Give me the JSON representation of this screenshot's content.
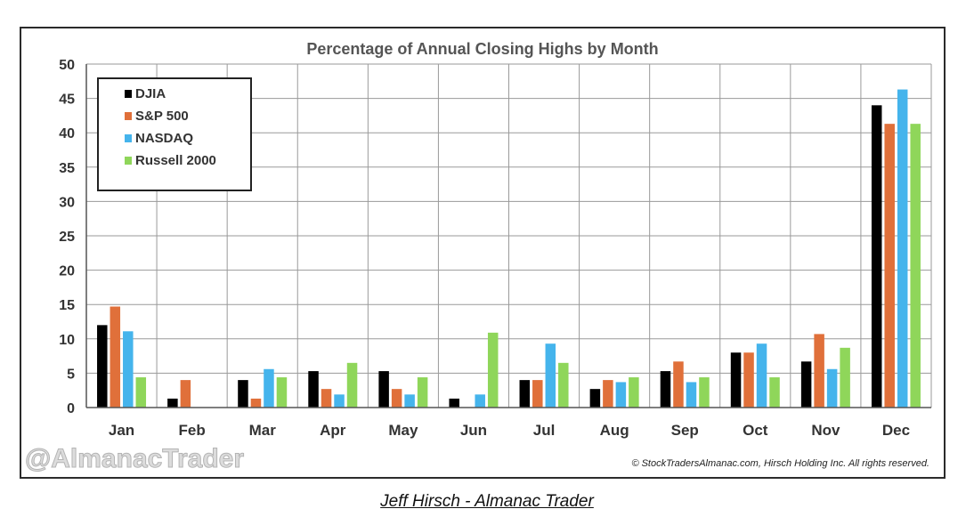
{
  "chart_data": {
    "type": "bar",
    "title": "Percentage of Annual Closing Highs by Month",
    "xlabel": "",
    "ylabel": "",
    "ylim": [
      0,
      50
    ],
    "yticks": [
      0,
      5,
      10,
      15,
      20,
      25,
      30,
      35,
      40,
      45,
      50
    ],
    "grid": true,
    "legend_position": "top-left",
    "categories": [
      "Jan",
      "Feb",
      "Mar",
      "Apr",
      "May",
      "Jun",
      "Jul",
      "Aug",
      "Sep",
      "Oct",
      "Nov",
      "Dec"
    ],
    "series": [
      {
        "name": "DJIA",
        "color": "#000000",
        "values": [
          12.0,
          1.3,
          4.0,
          5.3,
          5.3,
          1.3,
          4.0,
          2.7,
          5.3,
          8.0,
          6.7,
          44.0
        ]
      },
      {
        "name": "S&P 500",
        "color": "#e0703a",
        "values": [
          14.7,
          4.0,
          1.3,
          2.7,
          2.7,
          0,
          4.0,
          4.0,
          6.7,
          8.0,
          10.7,
          41.3
        ]
      },
      {
        "name": "NASDAQ",
        "color": "#45b4ec",
        "values": [
          11.1,
          0,
          5.6,
          1.9,
          1.9,
          1.9,
          9.3,
          3.7,
          3.7,
          9.3,
          5.6,
          46.3
        ]
      },
      {
        "name": "Russell 2000",
        "color": "#8fd65a",
        "values": [
          4.4,
          0,
          4.4,
          6.5,
          4.4,
          10.9,
          6.5,
          4.4,
          4.4,
          4.4,
          8.7,
          41.3
        ]
      }
    ],
    "watermark": "@AlmanacTrader",
    "copyright": "© StockTradersAlmanac.com, Hirsch Holding Inc. All rights reserved."
  },
  "caption": "Jeff Hirsch - Almanac Trader"
}
